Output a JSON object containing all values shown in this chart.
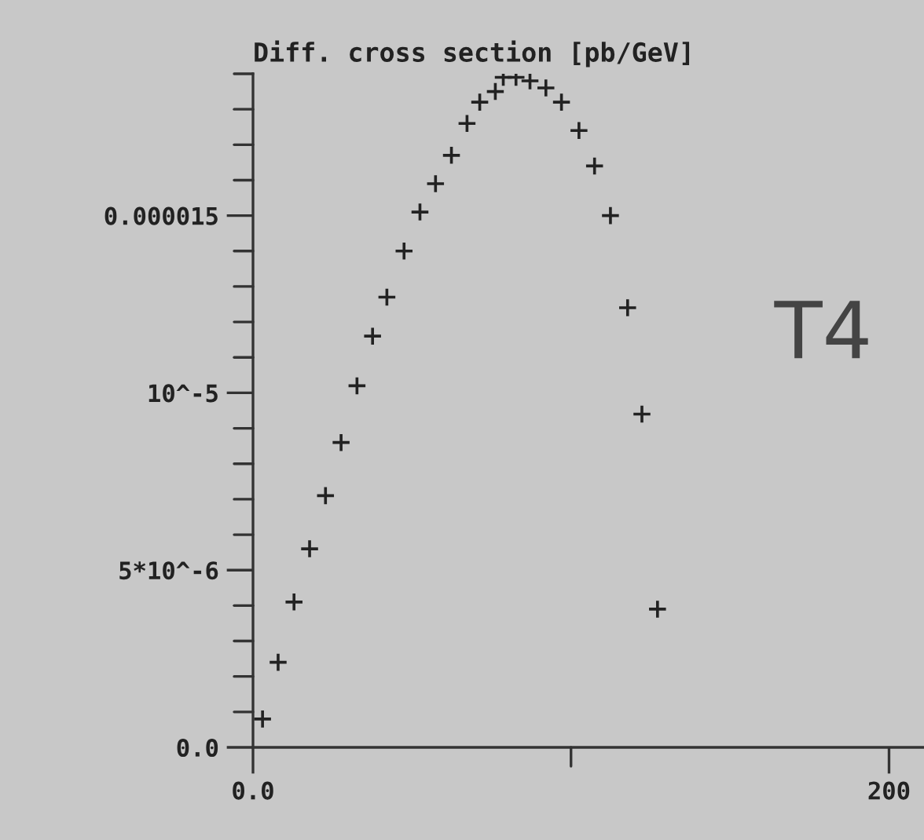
{
  "chart_data": {
    "type": "scatter",
    "title": "Diff. cross section [pb/GeV]",
    "x": [
      3.0,
      7.9,
      12.9,
      17.8,
      22.8,
      27.7,
      32.7,
      37.6,
      42.1,
      47.5,
      52.5,
      57.4,
      62.4,
      67.3,
      71.3,
      76.2,
      78.7,
      82.7,
      87.1,
      92.1,
      97.0,
      102.5,
      107.4,
      112.4,
      117.8,
      122.3,
      127.2
    ],
    "series": [
      {
        "color": "#222222",
        "values": [
          8e-07,
          2.4e-06,
          4.1e-06,
          5.6e-06,
          7.1e-06,
          8.6e-06,
          1.02e-05,
          1.16e-05,
          1.27e-05,
          1.4e-05,
          1.51e-05,
          1.59e-05,
          1.67e-05,
          1.76e-05,
          1.82e-05,
          1.85e-05,
          1.89e-05,
          1.89e-05,
          1.88e-05,
          1.86e-05,
          1.82e-05,
          1.74e-05,
          1.64e-05,
          1.5e-05,
          1.24e-05,
          9.4e-06,
          3.9e-06
        ]
      }
    ],
    "marker": "cross",
    "xlim": [
      0,
      211
    ],
    "ylim": [
      0,
      1.9e-05
    ],
    "xticks": [
      {
        "value": 0,
        "label": "0.0"
      },
      {
        "value": 100,
        "label": null
      },
      200
    ],
    "yticks": [
      {
        "value": 0,
        "label": "0.0"
      },
      {
        "value": 1e-06,
        "label": null
      },
      {
        "value": 2e-06,
        "label": null
      },
      {
        "value": 3e-06,
        "label": null
      },
      {
        "value": 4e-06,
        "label": null
      },
      {
        "value": 5e-06,
        "label": "5*10^-6"
      },
      {
        "value": 6e-06,
        "label": null
      },
      {
        "value": 7e-06,
        "label": null
      },
      {
        "value": 8e-06,
        "label": null
      },
      {
        "value": 9e-06,
        "label": null
      },
      {
        "value": 1e-05,
        "label": "10^-5"
      },
      {
        "value": 1.1e-05,
        "label": null
      },
      {
        "value": 1.2e-05,
        "label": null
      },
      {
        "value": 1.3e-05,
        "label": null
      },
      {
        "value": 1.4e-05,
        "label": null
      },
      {
        "value": 1.5e-05,
        "label": "0.000015"
      },
      {
        "value": 1.6e-05,
        "label": null
      },
      {
        "value": 1.7e-05,
        "label": null
      },
      {
        "value": 1.8e-05,
        "label": null
      },
      {
        "value": 1.9e-05,
        "label": null
      }
    ],
    "legend": false,
    "annotations": [
      "T4"
    ]
  }
}
